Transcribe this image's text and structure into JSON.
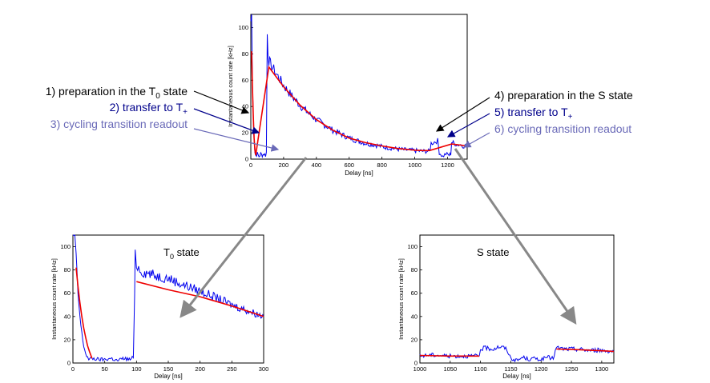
{
  "chart_data": [
    {
      "type": "line",
      "id": "overview",
      "xlabel": "Delay [ns]",
      "ylabel": "Instantaneous count rate [kHz]",
      "xlim": [
        0,
        1320
      ],
      "ylim": [
        0,
        110
      ],
      "xticks": [
        0,
        200,
        400,
        600,
        800,
        1000,
        1200
      ],
      "yticks": [
        0,
        20,
        40,
        60,
        80,
        100
      ],
      "grid": false,
      "series": [
        {
          "color": "#0000ee",
          "points": [
            [
              0,
              105
            ],
            [
              5,
              110
            ],
            [
              10,
              60
            ],
            [
              18,
              20
            ],
            [
              25,
              5
            ],
            [
              30,
              3
            ],
            [
              40,
              4
            ],
            [
              50,
              2
            ],
            [
              60,
              4
            ],
            [
              70,
              3
            ],
            [
              80,
              4
            ],
            [
              90,
              3
            ],
            [
              95,
              5
            ],
            [
              100,
              95
            ],
            [
              105,
              80
            ],
            [
              110,
              75
            ],
            [
              120,
              72
            ],
            [
              140,
              68
            ],
            [
              160,
              64
            ],
            [
              200,
              56
            ],
            [
              250,
              48
            ],
            [
              300,
              41
            ],
            [
              350,
              35
            ],
            [
              400,
              30
            ],
            [
              450,
              26
            ],
            [
              500,
              22
            ],
            [
              550,
              19
            ],
            [
              600,
              16
            ],
            [
              650,
              14
            ],
            [
              700,
              12
            ],
            [
              750,
              11
            ],
            [
              800,
              9.5
            ],
            [
              850,
              8.5
            ],
            [
              900,
              7.5
            ],
            [
              950,
              7
            ],
            [
              1000,
              6.5
            ],
            [
              1050,
              6
            ],
            [
              1090,
              6
            ],
            [
              1100,
              12
            ],
            [
              1120,
              13
            ],
            [
              1140,
              14
            ],
            [
              1150,
              5
            ],
            [
              1170,
              2
            ],
            [
              1190,
              4
            ],
            [
              1210,
              3
            ],
            [
              1220,
              4
            ],
            [
              1225,
              13
            ],
            [
              1240,
              12
            ],
            [
              1260,
              11
            ],
            [
              1280,
              11
            ],
            [
              1300,
              10
            ],
            [
              1320,
              10
            ]
          ]
        },
        {
          "color": "#ee0000",
          "points": [
            [
              5,
              82
            ],
            [
              10,
              55
            ],
            [
              15,
              32
            ],
            [
              20,
              16
            ],
            [
              25,
              7
            ],
            [
              30,
              3
            ],
            [
              110,
              70
            ],
            [
              200,
              55
            ],
            [
              300,
              41
            ],
            [
              400,
              30
            ],
            [
              500,
              22
            ],
            [
              600,
              16
            ],
            [
              700,
              12.5
            ],
            [
              800,
              10
            ],
            [
              900,
              8
            ],
            [
              1000,
              6.8
            ],
            [
              1050,
              6.5
            ],
            [
              1090,
              6.5
            ],
            [
              1225,
              11.5
            ],
            [
              1320,
              10
            ]
          ]
        }
      ]
    },
    {
      "type": "line",
      "id": "t0-zoom",
      "title": "T0 state",
      "xlabel": "Delay [ns]",
      "ylabel": "Instantaneous count rate [kHz]",
      "xlim": [
        0,
        300
      ],
      "ylim": [
        0,
        110
      ],
      "xticks": [
        0,
        50,
        100,
        150,
        200,
        250,
        300
      ],
      "yticks": [
        0,
        20,
        40,
        60,
        80,
        100
      ],
      "grid": false,
      "series": [
        {
          "color": "#0000ee",
          "points": [
            [
              0,
              110
            ],
            [
              3,
              110
            ],
            [
              5,
              90
            ],
            [
              8,
              60
            ],
            [
              11,
              40
            ],
            [
              14,
              25
            ],
            [
              17,
              15
            ],
            [
              20,
              8
            ],
            [
              23,
              5
            ],
            [
              25,
              3
            ],
            [
              30,
              4
            ],
            [
              40,
              3
            ],
            [
              50,
              3
            ],
            [
              60,
              4
            ],
            [
              70,
              2
            ],
            [
              80,
              4
            ],
            [
              90,
              3
            ],
            [
              95,
              5
            ],
            [
              97,
              55
            ],
            [
              98,
              95
            ],
            [
              100,
              85
            ],
            [
              105,
              80
            ],
            [
              110,
              78
            ],
            [
              120,
              77
            ],
            [
              130,
              75
            ],
            [
              150,
              73
            ],
            [
              170,
              68
            ],
            [
              200,
              62
            ],
            [
              230,
              55
            ],
            [
              250,
              50
            ],
            [
              270,
              46
            ],
            [
              300,
              40
            ]
          ]
        },
        {
          "color": "#ee0000",
          "points": [
            [
              5,
              82
            ],
            [
              8,
              66
            ],
            [
              11,
              52
            ],
            [
              14,
              40
            ],
            [
              17,
              30
            ],
            [
              20,
              22
            ],
            [
              23,
              15
            ],
            [
              26,
              10
            ],
            [
              30,
              4
            ],
            [
              100,
              70
            ],
            [
              150,
              63
            ],
            [
              200,
              57
            ],
            [
              250,
              49
            ],
            [
              300,
              40
            ]
          ]
        }
      ]
    },
    {
      "type": "line",
      "id": "s-zoom",
      "title": "S state",
      "xlabel": "Delay [ns]",
      "ylabel": "Instantaneous count rate [kHz]",
      "xlim": [
        1000,
        1320
      ],
      "ylim": [
        0,
        110
      ],
      "xticks": [
        1000,
        1050,
        1100,
        1150,
        1200,
        1250,
        1300
      ],
      "yticks": [
        0,
        20,
        40,
        60,
        80,
        100
      ],
      "grid": false,
      "series": [
        {
          "color": "#0000ee",
          "points": [
            [
              1000,
              6
            ],
            [
              1020,
              7
            ],
            [
              1050,
              6
            ],
            [
              1080,
              6
            ],
            [
              1098,
              6
            ],
            [
              1100,
              12
            ],
            [
              1110,
              13
            ],
            [
              1120,
              12
            ],
            [
              1130,
              14
            ],
            [
              1140,
              13
            ],
            [
              1145,
              10
            ],
            [
              1150,
              4
            ],
            [
              1160,
              2
            ],
            [
              1170,
              5
            ],
            [
              1180,
              3
            ],
            [
              1190,
              4
            ],
            [
              1200,
              3
            ],
            [
              1210,
              5
            ],
            [
              1220,
              4
            ],
            [
              1225,
              13
            ],
            [
              1240,
              12
            ],
            [
              1260,
              12
            ],
            [
              1280,
              11
            ],
            [
              1300,
              11
            ],
            [
              1320,
              10
            ]
          ]
        },
        {
          "color": "#ee0000",
          "points": [
            [
              1000,
              6.5
            ],
            [
              1050,
              6
            ],
            [
              1098,
              6
            ],
            [
              1225,
              12
            ],
            [
              1260,
              11.5
            ],
            [
              1300,
              10.5
            ],
            [
              1320,
              10
            ]
          ]
        }
      ]
    }
  ],
  "annotations_left": {
    "line1_pre": "1) preparation in the T",
    "line1_sub": "0",
    "line1_post": " state",
    "line2_pre": "2) transfer to T",
    "line2_sub": "+",
    "line3": "3) cycling transition readout"
  },
  "annotations_right": {
    "line4": "4) preparation in the S state",
    "line5_pre": "5) transfer to T",
    "line5_sub": "+",
    "line6": "6) cycling transition readout"
  },
  "zoom_labels": {
    "t0_pre": "T",
    "t0_sub": "0",
    "t0_post": " state",
    "s": "S state"
  },
  "colors": {
    "data": "#0000ee",
    "fit": "#ee0000",
    "text_dark": "#000000",
    "text_blue": "#00008b",
    "text_light": "#6a6ab8",
    "pointer": "#888888"
  }
}
